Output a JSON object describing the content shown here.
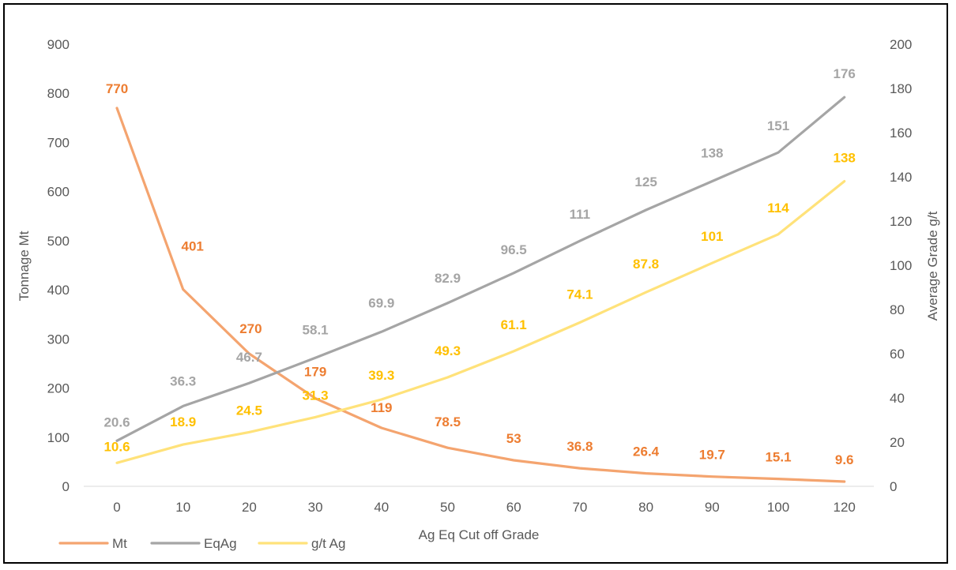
{
  "chart_data": {
    "type": "line",
    "x": [
      0,
      10,
      20,
      30,
      40,
      50,
      60,
      70,
      80,
      90,
      100,
      120
    ],
    "categories": [
      "0",
      "10",
      "20",
      "30",
      "40",
      "50",
      "60",
      "70",
      "80",
      "90",
      "100",
      "120"
    ],
    "xlabel": "Ag Eq Cut off Grade",
    "ylabel": "Tonnage Mt",
    "y2label": "Average Grade g/t",
    "ylim": [
      0,
      900
    ],
    "y2lim": [
      0,
      200
    ],
    "yticks": [
      "0",
      "100",
      "200",
      "300",
      "400",
      "500",
      "600",
      "700",
      "800",
      "900"
    ],
    "y2ticks": [
      "0",
      "20",
      "40",
      "60",
      "80",
      "100",
      "120",
      "140",
      "160",
      "180",
      "200"
    ],
    "grid": false,
    "legend_position": "bottom-left",
    "series": [
      {
        "name": "Mt",
        "axis": "left",
        "color": "#F4A46F",
        "label_color": "#ED7D31",
        "values": [
          770,
          401,
          270,
          179,
          119,
          78.5,
          53,
          36.8,
          26.4,
          19.7,
          15.1,
          9.6
        ],
        "labels": [
          "770",
          "401",
          "270",
          "179",
          "119",
          "78.5",
          "53",
          "36.8",
          "26.4",
          "19.7",
          "15.1",
          "9.6"
        ]
      },
      {
        "name": "EqAg",
        "axis": "right",
        "color": "#A5A5A5",
        "label_color": "#A5A5A5",
        "values": [
          20.6,
          36.3,
          46.7,
          58.1,
          69.9,
          82.9,
          96.5,
          111,
          125,
          138,
          151,
          176
        ],
        "labels": [
          "20.6",
          "36.3",
          "46.7",
          "58.1",
          "69.9",
          "82.9",
          "96.5",
          "111",
          "125",
          "138",
          "151",
          "176"
        ]
      },
      {
        "name": "g/t Ag",
        "axis": "right",
        "color": "#FFE27A",
        "label_color": "#FFC000",
        "values": [
          10.6,
          18.9,
          24.5,
          31.3,
          39.3,
          49.3,
          61.1,
          74.1,
          87.8,
          101,
          114,
          138
        ],
        "labels": [
          "10.6",
          "18.9",
          "24.5",
          "31.3",
          "39.3",
          "49.3",
          "61.1",
          "74.1",
          "87.8",
          "101",
          "114",
          "138"
        ]
      }
    ]
  }
}
